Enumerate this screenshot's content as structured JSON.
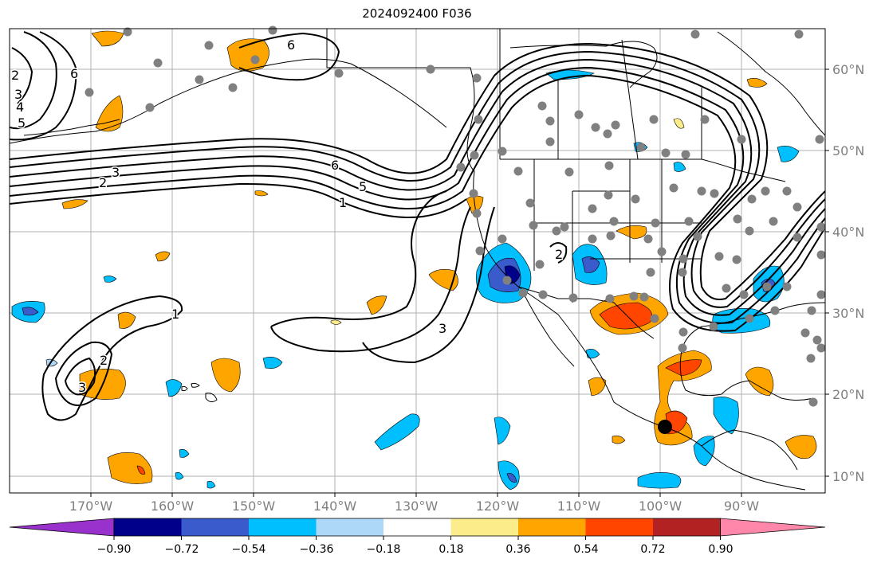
{
  "title": "2024092400 F036",
  "latitude_labels": [
    "60°N",
    "50°N",
    "40°N",
    "30°N",
    "20°N",
    "10°N"
  ],
  "longitude_labels": [
    "170°W",
    "160°W",
    "150°W",
    "140°W",
    "130°W",
    "120°W",
    "110°W",
    "100°W",
    "90°W"
  ],
  "colorbar": {
    "tick_labels": [
      "−0.90",
      "−0.72",
      "−0.54",
      "−0.36",
      "−0.18",
      "0.18",
      "0.36",
      "0.54",
      "0.72",
      "0.90"
    ],
    "colors": [
      "#9932cc",
      "#00008b",
      "#3a5bcc",
      "#00bfff",
      "#add8f8",
      "#ffffff",
      "#fdec8a",
      "#ffa500",
      "#ff4500",
      "#b22222",
      "#ff88aa"
    ]
  },
  "contour_labels": [
    "2",
    "3",
    "4",
    "5",
    "6",
    "6",
    "2",
    "3",
    "6",
    "5",
    "1",
    "1",
    "2",
    "3",
    "3",
    "2"
  ],
  "marker_color": "#808080",
  "highlight_marker_color": "#000000"
}
